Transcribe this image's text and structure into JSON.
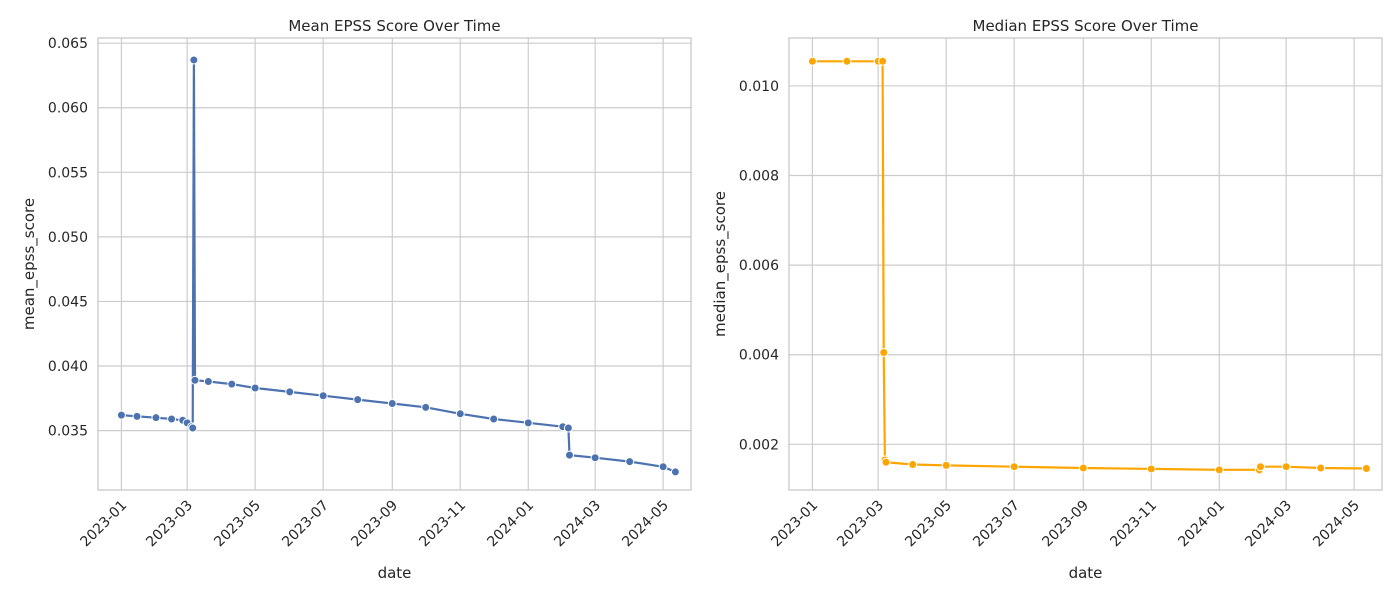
{
  "chart_data": [
    {
      "type": "line",
      "title": "Mean EPSS Score Over Time",
      "xlabel": "date",
      "ylabel": "mean_epss_score",
      "x_type": "date",
      "xlim": [
        "2022-12-11",
        "2024-05-26"
      ],
      "ylim": [
        0.0304,
        0.0654
      ],
      "x_ticks": [
        "2023-01",
        "2023-03",
        "2023-05",
        "2023-07",
        "2023-09",
        "2023-11",
        "2024-01",
        "2024-03",
        "2024-05"
      ],
      "y_ticks": [
        0.035,
        0.04,
        0.045,
        0.05,
        0.055,
        0.06,
        0.065
      ],
      "grid": true,
      "series": [
        {
          "color": "#4c72b0",
          "marker": "circle",
          "x": [
            "2023-01-01",
            "2023-01-15",
            "2023-02-01",
            "2023-02-15",
            "2023-02-25",
            "2023-03-01",
            "2023-03-05",
            "2023-03-06",
            "2023-03-07",
            "2023-03-08",
            "2023-03-20",
            "2023-04-10",
            "2023-05-01",
            "2023-06-01",
            "2023-07-01",
            "2023-08-01",
            "2023-09-01",
            "2023-10-01",
            "2023-11-01",
            "2023-12-01",
            "2024-01-01",
            "2024-02-01",
            "2024-02-06",
            "2024-02-07",
            "2024-03-01",
            "2024-04-01",
            "2024-05-01",
            "2024-05-12"
          ],
          "y": [
            0.0362,
            0.0361,
            0.036,
            0.0359,
            0.0358,
            0.0356,
            0.0353,
            0.0352,
            0.0637,
            0.0389,
            0.0388,
            0.0386,
            0.0383,
            0.038,
            0.0377,
            0.0374,
            0.0371,
            0.0368,
            0.0363,
            0.0359,
            0.0356,
            0.0353,
            0.0352,
            0.0331,
            0.0329,
            0.0326,
            0.0322,
            0.0318
          ]
        }
      ]
    },
    {
      "type": "line",
      "title": "Median EPSS Score Over Time",
      "xlabel": "date",
      "ylabel": "median_epss_score",
      "x_type": "date",
      "xlim": [
        "2022-12-11",
        "2024-05-26"
      ],
      "ylim": [
        0.00098,
        0.01107
      ],
      "x_ticks": [
        "2023-01",
        "2023-03",
        "2023-05",
        "2023-07",
        "2023-09",
        "2023-11",
        "2024-01",
        "2024-03",
        "2024-05"
      ],
      "y_ticks": [
        0.002,
        0.004,
        0.006,
        0.008,
        0.01
      ],
      "grid": true,
      "series": [
        {
          "color": "#ffa500",
          "marker": "circle",
          "x": [
            "2023-01-01",
            "2023-02-01",
            "2023-03-01",
            "2023-03-05",
            "2023-03-06",
            "2023-03-07",
            "2023-03-08",
            "2023-04-01",
            "2023-05-01",
            "2023-07-01",
            "2023-09-01",
            "2023-11-01",
            "2024-01-01",
            "2024-02-06",
            "2024-02-07",
            "2024-03-01",
            "2024-04-01",
            "2024-05-12"
          ],
          "y": [
            0.01055,
            0.01055,
            0.01055,
            0.01055,
            0.00405,
            0.00165,
            0.0016,
            0.00155,
            0.00153,
            0.0015,
            0.00147,
            0.00145,
            0.00143,
            0.00143,
            0.0015,
            0.0015,
            0.00147,
            0.00146
          ]
        }
      ]
    }
  ]
}
